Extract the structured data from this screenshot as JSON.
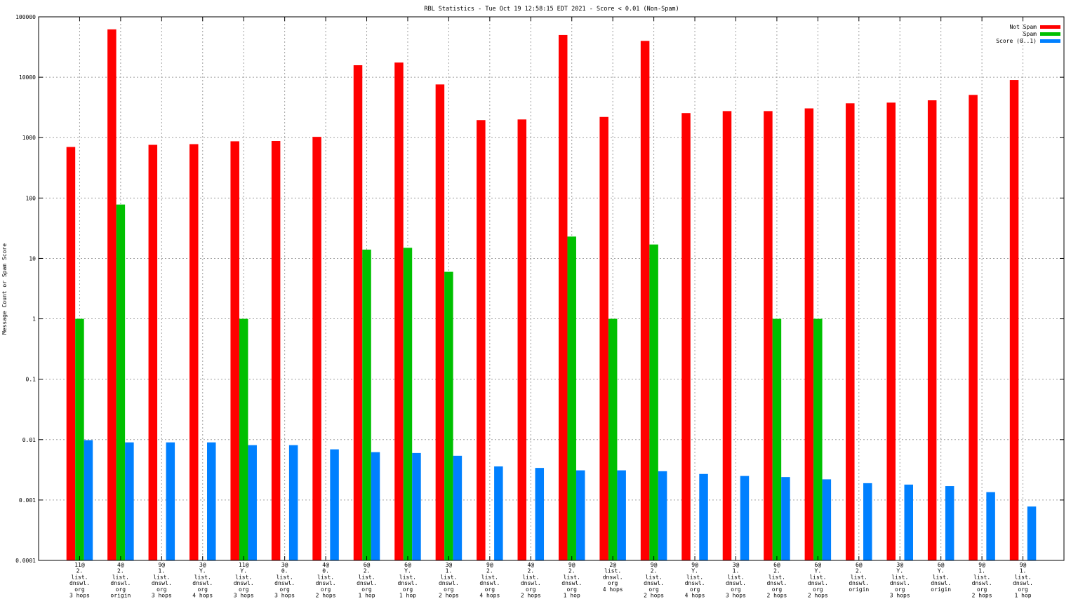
{
  "chart_data": {
    "type": "bar",
    "title": "RBL Statistics - Tue Oct 19 12:58:15 EDT 2021 - Score < 0.01 (Non-Spam)",
    "ylabel": "Message Count or Spam Score",
    "xlabel": "",
    "yscale": "log",
    "ylim": [
      0.0001,
      100000
    ],
    "yticks": [
      "0.0001",
      "0.001",
      "0.01",
      "0.1",
      "1",
      "10",
      "100",
      "1000",
      "10000",
      "100000"
    ],
    "grid": true,
    "legend_position": "top-right",
    "categories": [
      [
        "11@",
        "2.",
        "list.",
        "dnswl.",
        "org",
        "3 hops"
      ],
      [
        "4@",
        "2.",
        "list.",
        "dnswl.",
        "org",
        "origin"
      ],
      [
        "9@",
        "1.",
        "list.",
        "dnswl.",
        "org",
        "3 hops"
      ],
      [
        "3@",
        "Y.",
        "list.",
        "dnswl.",
        "org",
        "4 hops"
      ],
      [
        "11@",
        "Y.",
        "list.",
        "dnswl.",
        "org",
        "3 hops"
      ],
      [
        "3@",
        "0.",
        "list.",
        "dnswl.",
        "org",
        "3 hops"
      ],
      [
        "4@",
        "0.",
        "list.",
        "dnswl.",
        "org",
        "2 hops"
      ],
      [
        "6@",
        "2.",
        "list.",
        "dnswl.",
        "org",
        "1 hop"
      ],
      [
        "6@",
        "Y.",
        "list.",
        "dnswl.",
        "org",
        "1 hop"
      ],
      [
        "3@",
        "1.",
        "list.",
        "dnswl.",
        "org",
        "2 hops"
      ],
      [
        "9@",
        "2.",
        "list.",
        "dnswl.",
        "org",
        "4 hops"
      ],
      [
        "4@",
        "2.",
        "list.",
        "dnswl.",
        "org",
        "2 hops"
      ],
      [
        "9@",
        "2.",
        "list.",
        "dnswl.",
        "org",
        "1 hop"
      ],
      [
        "2@",
        "list.",
        "dnswl.",
        "org",
        "4 hops"
      ],
      [
        "9@",
        "2.",
        "list.",
        "dnswl.",
        "org",
        "2 hops"
      ],
      [
        "9@",
        "Y.",
        "list.",
        "dnswl.",
        "org",
        "4 hops"
      ],
      [
        "3@",
        "1.",
        "list.",
        "dnswl.",
        "org",
        "3 hops"
      ],
      [
        "6@",
        "2.",
        "list.",
        "dnswl.",
        "org",
        "2 hops"
      ],
      [
        "6@",
        "Y.",
        "list.",
        "dnswl.",
        "org",
        "2 hops"
      ],
      [
        "6@",
        "2.",
        "list.",
        "dnswl.",
        "origin"
      ],
      [
        "3@",
        "Y.",
        "list.",
        "dnswl.",
        "org",
        "3 hops"
      ],
      [
        "6@",
        "Y.",
        "list.",
        "dnswl.",
        "origin"
      ],
      [
        "9@",
        "1.",
        "list.",
        "dnswl.",
        "org",
        "2 hops"
      ],
      [
        "9@",
        "1.",
        "list.",
        "dnswl.",
        "org",
        "1 hop"
      ]
    ],
    "series": [
      {
        "name": "Not Spam",
        "color": "#ff0000",
        "values": [
          700,
          62000,
          760,
          780,
          870,
          880,
          1030,
          15800,
          17500,
          7600,
          1950,
          2000,
          50000,
          2200,
          40000,
          2550,
          2750,
          2750,
          3050,
          3700,
          3800,
          4150,
          5100,
          9000
        ]
      },
      {
        "name": "Spam",
        "color": "#00c000",
        "values": [
          1,
          78,
          null,
          null,
          1,
          null,
          null,
          14,
          15,
          6,
          null,
          null,
          23,
          1,
          17,
          null,
          null,
          1,
          1,
          null,
          null,
          null,
          null,
          null
        ]
      },
      {
        "name": "Score (0..1)",
        "color": "#0080ff",
        "values": [
          0.0098,
          0.009,
          0.009,
          0.009,
          0.0081,
          0.0081,
          0.0069,
          0.0062,
          0.006,
          0.0054,
          0.0036,
          0.0034,
          0.0031,
          0.0031,
          0.003,
          0.0027,
          0.0025,
          0.0024,
          0.0022,
          0.0019,
          0.0018,
          0.0017,
          0.00135,
          0.00078
        ]
      }
    ]
  }
}
